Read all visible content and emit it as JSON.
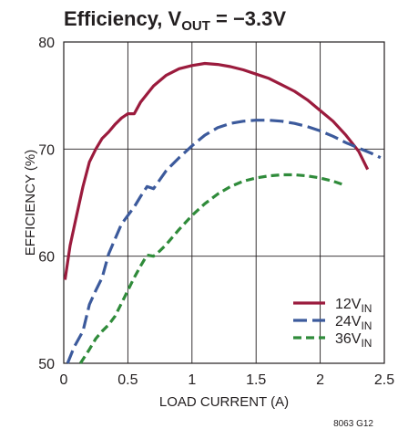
{
  "chart_data": {
    "type": "line",
    "title": {
      "main": "Efficiency, V",
      "sub": "OUT",
      "rest": " = −3.3V"
    },
    "xlabel": "LOAD CURRENT (A)",
    "ylabel": "EFFICIENCY (%)",
    "xlim": [
      0,
      2.5
    ],
    "ylim": [
      50,
      80
    ],
    "xticks": [
      0,
      0.5,
      1,
      1.5,
      2,
      2.5
    ],
    "yticks": [
      50,
      60,
      70,
      80
    ],
    "xtick_labels": [
      "0",
      "0.5",
      "1",
      "1.5",
      "2",
      "2.5"
    ],
    "ytick_labels": [
      "50",
      "60",
      "70",
      "80"
    ],
    "grid": true,
    "legend_position": "bottom-right",
    "figure_code": "8063 G12",
    "series": [
      {
        "name": "12V",
        "name_sub": "IN",
        "color": "#9b1b3d",
        "style": "solid",
        "x": [
          0.01,
          0.05,
          0.1,
          0.15,
          0.2,
          0.25,
          0.3,
          0.35,
          0.4,
          0.45,
          0.5,
          0.55,
          0.6,
          0.7,
          0.8,
          0.9,
          1.0,
          1.1,
          1.2,
          1.3,
          1.4,
          1.5,
          1.6,
          1.7,
          1.8,
          1.9,
          2.0,
          2.1,
          2.2,
          2.3,
          2.37
        ],
        "y": [
          57.8,
          61.0,
          63.8,
          66.5,
          68.8,
          70.0,
          71.0,
          71.6,
          72.3,
          72.9,
          73.3,
          73.3,
          74.4,
          75.9,
          76.9,
          77.5,
          77.8,
          78.0,
          77.9,
          77.7,
          77.4,
          77.0,
          76.6,
          76.0,
          75.4,
          74.6,
          73.6,
          72.6,
          71.3,
          69.8,
          68.1
        ]
      },
      {
        "name": "24V",
        "name_sub": "IN",
        "color": "#3c5a9c",
        "style": "dashed",
        "x": [
          0.03,
          0.08,
          0.15,
          0.2,
          0.25,
          0.3,
          0.35,
          0.4,
          0.45,
          0.5,
          0.55,
          0.6,
          0.65,
          0.7,
          0.8,
          0.9,
          1.0,
          1.1,
          1.2,
          1.3,
          1.4,
          1.5,
          1.6,
          1.7,
          1.8,
          1.9,
          2.0,
          2.1,
          2.2,
          2.3,
          2.4,
          2.47
        ],
        "y": [
          50.0,
          51.5,
          53.0,
          55.5,
          56.8,
          58.0,
          60.2,
          61.6,
          63.0,
          63.8,
          64.6,
          65.6,
          66.5,
          66.3,
          68.0,
          69.2,
          70.3,
          71.3,
          72.0,
          72.4,
          72.6,
          72.7,
          72.7,
          72.6,
          72.4,
          72.1,
          71.7,
          71.2,
          70.6,
          70.1,
          69.6,
          69.2
        ]
      },
      {
        "name": "36V",
        "name_sub": "IN",
        "color": "#2f8b3a",
        "style": "dashed",
        "x": [
          0.13,
          0.2,
          0.25,
          0.3,
          0.35,
          0.4,
          0.45,
          0.5,
          0.55,
          0.6,
          0.65,
          0.7,
          0.75,
          0.8,
          0.9,
          1.0,
          1.1,
          1.2,
          1.3,
          1.4,
          1.5,
          1.6,
          1.7,
          1.8,
          1.9,
          2.0,
          2.1,
          2.2
        ],
        "y": [
          50.0,
          51.3,
          52.3,
          53.0,
          53.6,
          54.4,
          55.6,
          56.8,
          58.0,
          59.1,
          60.1,
          60.0,
          60.5,
          61.1,
          62.5,
          63.8,
          64.9,
          65.8,
          66.5,
          67.0,
          67.3,
          67.5,
          67.6,
          67.6,
          67.5,
          67.3,
          67.0,
          66.6
        ]
      }
    ]
  }
}
